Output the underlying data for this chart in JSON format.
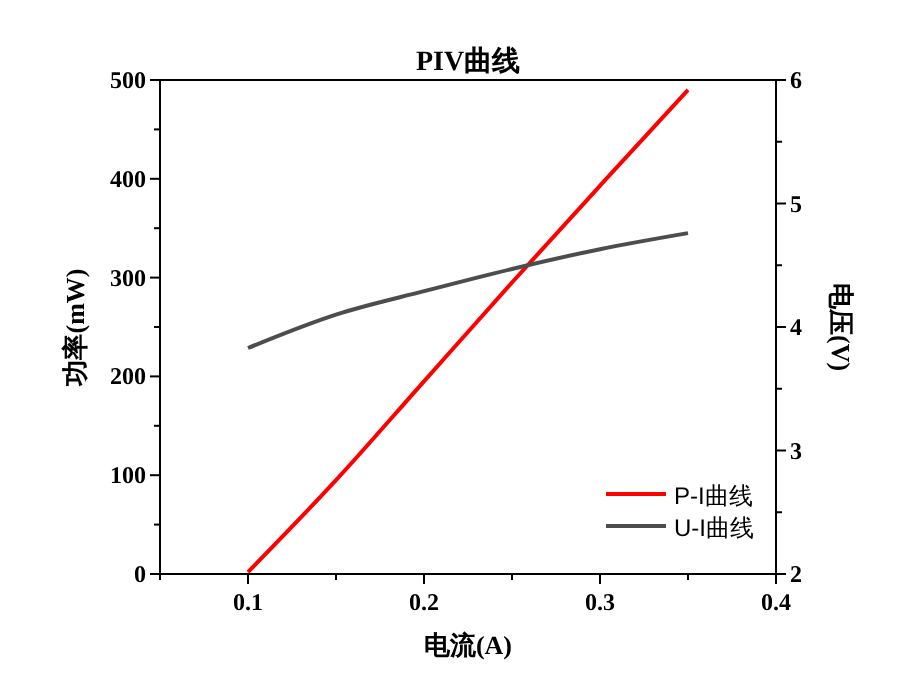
{
  "chart_data": {
    "type": "line",
    "title": "PIV曲线",
    "xlabel": "电流(A)",
    "ylabel": "功率(mW)",
    "y2label": "电压(V)",
    "x": [
      0.1,
      0.15,
      0.2,
      0.25,
      0.3,
      0.35
    ],
    "xlim": [
      0.05,
      0.4
    ],
    "xticks": [
      {
        "value": 0.05,
        "label": null
      },
      0.1,
      {
        "value": 0.15,
        "label": null
      },
      0.2,
      {
        "value": 0.25,
        "label": null
      },
      0.3,
      {
        "value": 0.35,
        "label": null
      },
      0.4
    ],
    "ylim": [
      0,
      500
    ],
    "yticks": [
      0,
      {
        "value": 50,
        "label": null
      },
      100,
      {
        "value": 150,
        "label": null
      },
      200,
      {
        "value": 250,
        "label": null
      },
      300,
      {
        "value": 350,
        "label": null
      },
      400,
      {
        "value": 450,
        "label": null
      },
      500
    ],
    "y2lim": [
      2,
      6
    ],
    "y2ticks": [
      2,
      {
        "value": 2.5,
        "label": null
      },
      3,
      {
        "value": 3.5,
        "label": null
      },
      4,
      {
        "value": 4.5,
        "label": null
      },
      5,
      {
        "value": 5.5,
        "label": null
      },
      6
    ],
    "series": [
      {
        "name": "P-I曲线",
        "color": "#ff0000",
        "values": [
          2,
          95,
          195,
          295,
          393,
          490
        ]
      },
      {
        "name": "U-I曲线",
        "color": "#4d4d4d",
        "axis": "y2",
        "values": [
          3.83,
          4.1,
          4.29,
          4.47,
          4.63,
          4.76
        ]
      }
    ],
    "legend": "bottom right",
    "grid": false,
    "line_style": "solid",
    "marker": "none"
  }
}
